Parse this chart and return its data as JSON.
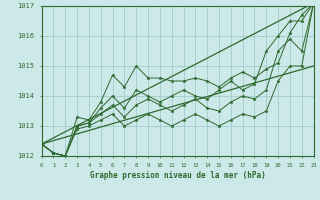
{
  "title": "Graphe pression niveau de la mer (hPa)",
  "background_color": "#cde8e8",
  "grid_color": "#a0cccc",
  "line_color": "#2d6a2d",
  "marker_color": "#2d6a2d",
  "x_min": 0,
  "x_max": 23,
  "y_min": 1012,
  "y_max": 1017,
  "y_ticks": [
    1012,
    1013,
    1014,
    1015,
    1016,
    1017
  ],
  "x_ticks": [
    0,
    1,
    2,
    3,
    4,
    5,
    6,
    7,
    8,
    9,
    10,
    11,
    12,
    13,
    14,
    15,
    16,
    17,
    18,
    19,
    20,
    21,
    22,
    23
  ],
  "series": [
    [
      1012.4,
      1012.1,
      1012.0,
      1013.3,
      1013.2,
      1013.8,
      1014.7,
      1014.3,
      1015.0,
      1014.6,
      1014.6,
      1014.5,
      1014.5,
      1014.6,
      1014.5,
      1014.3,
      1014.6,
      1014.8,
      1014.6,
      1014.9,
      1015.1,
      1016.1,
      1016.7,
      1017.1
    ],
    [
      1012.4,
      1012.1,
      1012.0,
      1013.0,
      1013.1,
      1013.6,
      1014.0,
      1013.6,
      1014.2,
      1014.0,
      1013.8,
      1014.0,
      1014.2,
      1014.0,
      1013.9,
      1014.2,
      1014.5,
      1014.2,
      1014.4,
      1015.5,
      1016.0,
      1016.5,
      1016.5,
      1017.1
    ],
    [
      1012.4,
      1012.1,
      1012.0,
      1013.0,
      1013.1,
      1013.4,
      1013.7,
      1013.3,
      1013.7,
      1013.9,
      1013.7,
      1013.5,
      1013.7,
      1013.9,
      1013.6,
      1013.5,
      1013.8,
      1014.0,
      1013.9,
      1014.2,
      1015.5,
      1015.9,
      1015.5,
      1017.1
    ],
    [
      1012.4,
      1012.1,
      1012.0,
      1012.9,
      1013.0,
      1013.2,
      1013.4,
      1013.0,
      1013.2,
      1013.4,
      1013.2,
      1013.0,
      1013.2,
      1013.4,
      1013.2,
      1013.0,
      1013.2,
      1013.4,
      1013.3,
      1013.5,
      1014.5,
      1015.0,
      1015.0,
      1017.1
    ]
  ],
  "straight_lines": [
    [
      1012.4,
      1017.1
    ],
    [
      1012.4,
      1015.0
    ]
  ]
}
